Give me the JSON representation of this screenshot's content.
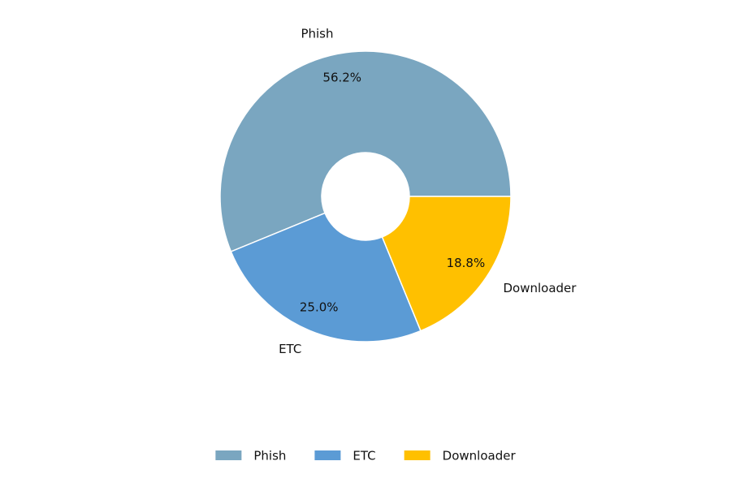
{
  "chart_data": {
    "type": "donut",
    "categories": [
      "Phish",
      "ETC",
      "Downloader"
    ],
    "values": [
      56.2,
      25.0,
      18.8
    ],
    "value_labels": [
      "56.2%",
      "25.0%",
      "18.8%"
    ],
    "colors": [
      "#7aa6c0",
      "#5b9bd5",
      "#ffc000"
    ],
    "legend": "bottom"
  }
}
